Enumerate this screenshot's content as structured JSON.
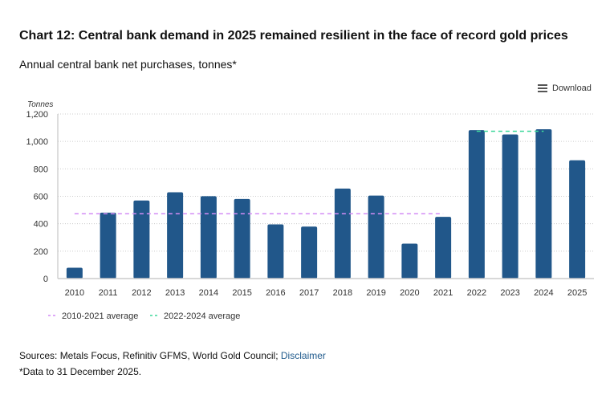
{
  "title": "Chart 12: Central bank demand in 2025 remained resilient in the face of record gold prices",
  "subtitle": "Annual central bank net purchases, tonnes*",
  "download_label": "Download",
  "sources": "Sources: Metals Focus, Refinitiv GFMS, World Gold Council; ",
  "disclaimer_label": "Disclaimer",
  "note": "*Data to 31 December 2025.",
  "chart_data": {
    "type": "bar",
    "ylabel": "Tonnes",
    "ylim": [
      0,
      1200
    ],
    "yticks": [
      0,
      200,
      400,
      600,
      800,
      1000,
      1200
    ],
    "ytick_labels": [
      "0",
      "200",
      "400",
      "600",
      "800",
      "1,000",
      "1,200"
    ],
    "grid": true,
    "categories": [
      "2010",
      "2011",
      "2012",
      "2013",
      "2014",
      "2015",
      "2016",
      "2017",
      "2018",
      "2019",
      "2020",
      "2021",
      "2022",
      "2023",
      "2024",
      "2025"
    ],
    "values": [
      79,
      481,
      569,
      629,
      601,
      580,
      395,
      379,
      656,
      605,
      255,
      450,
      1082,
      1051,
      1089,
      863
    ],
    "bar_color": "#21578a",
    "reference_lines": [
      {
        "name": "2010-2021 average",
        "value": 473,
        "from": "2010",
        "to": "2021",
        "color": "#d38cf5"
      },
      {
        "name": "2022-2024 average",
        "value": 1074,
        "from": "2022",
        "to": "2024",
        "color": "#3ed89c"
      }
    ],
    "legend_position": "bottom-left"
  }
}
